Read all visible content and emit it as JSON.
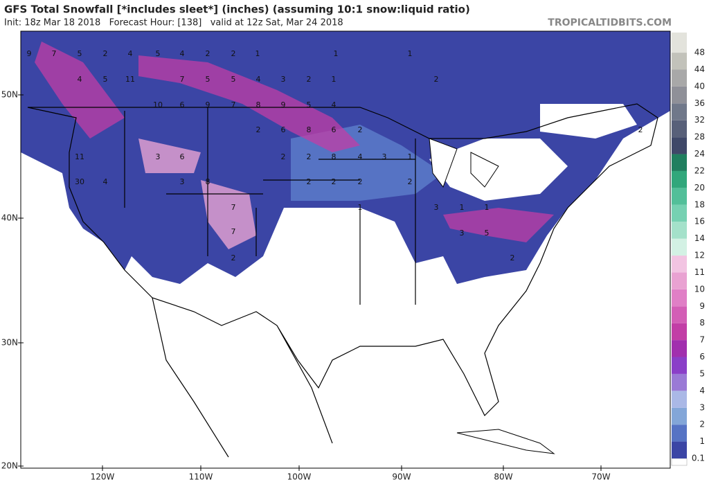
{
  "header": {
    "title": "GFS Total Snowfall [*includes sleet*] (inches) (assuming 10:1 snow:liquid ratio)",
    "subtitle": "Init: 18z Mar 18 2018   Forecast Hour: [138]   valid at 12z Sat, Mar 24 2018",
    "source": "TROPICALTIDBITS.COM"
  },
  "lat_labels": [
    "50N",
    "40N",
    "30N",
    "20N"
  ],
  "lon_labels": [
    "120W",
    "110W",
    "100W",
    "90W",
    "80W",
    "70W"
  ],
  "colorbar": {
    "labels": [
      0.1,
      1,
      2,
      3,
      4,
      5,
      6,
      7,
      8,
      9,
      10,
      11,
      12,
      14,
      16,
      18,
      20,
      22,
      24,
      28,
      32,
      36,
      40,
      44,
      48
    ],
    "colors": [
      "#3b45a5",
      "#5673c4",
      "#83a6d8",
      "#aab8e6",
      "#9a7ad6",
      "#8a3fc8",
      "#a12fae",
      "#c23ea6",
      "#d35eb6",
      "#e07fc6",
      "#e9a2d2",
      "#f2c4e2",
      "#d3f1e4",
      "#a4e1ca",
      "#76d1b2",
      "#52bf99",
      "#31a77b",
      "#207f5f",
      "#3f4868",
      "#586079",
      "#70788a",
      "#8f9098",
      "#a8a8a8",
      "#c2c2ba",
      "#e3e3dc"
    ]
  },
  "map_labels": [
    9,
    7,
    5,
    2,
    4,
    5,
    4,
    2,
    2,
    1,
    1,
    1,
    4,
    5,
    11,
    7,
    5,
    5,
    4,
    3,
    2,
    1,
    2,
    10,
    6,
    9,
    7,
    8,
    9,
    5,
    4,
    2,
    6,
    8,
    6,
    2,
    2,
    11,
    3,
    6,
    2,
    2,
    8,
    4,
    3,
    1,
    30,
    4,
    3,
    8,
    2,
    2,
    2,
    2,
    1,
    3,
    1,
    1,
    7,
    7,
    3,
    5,
    2,
    2
  ]
}
